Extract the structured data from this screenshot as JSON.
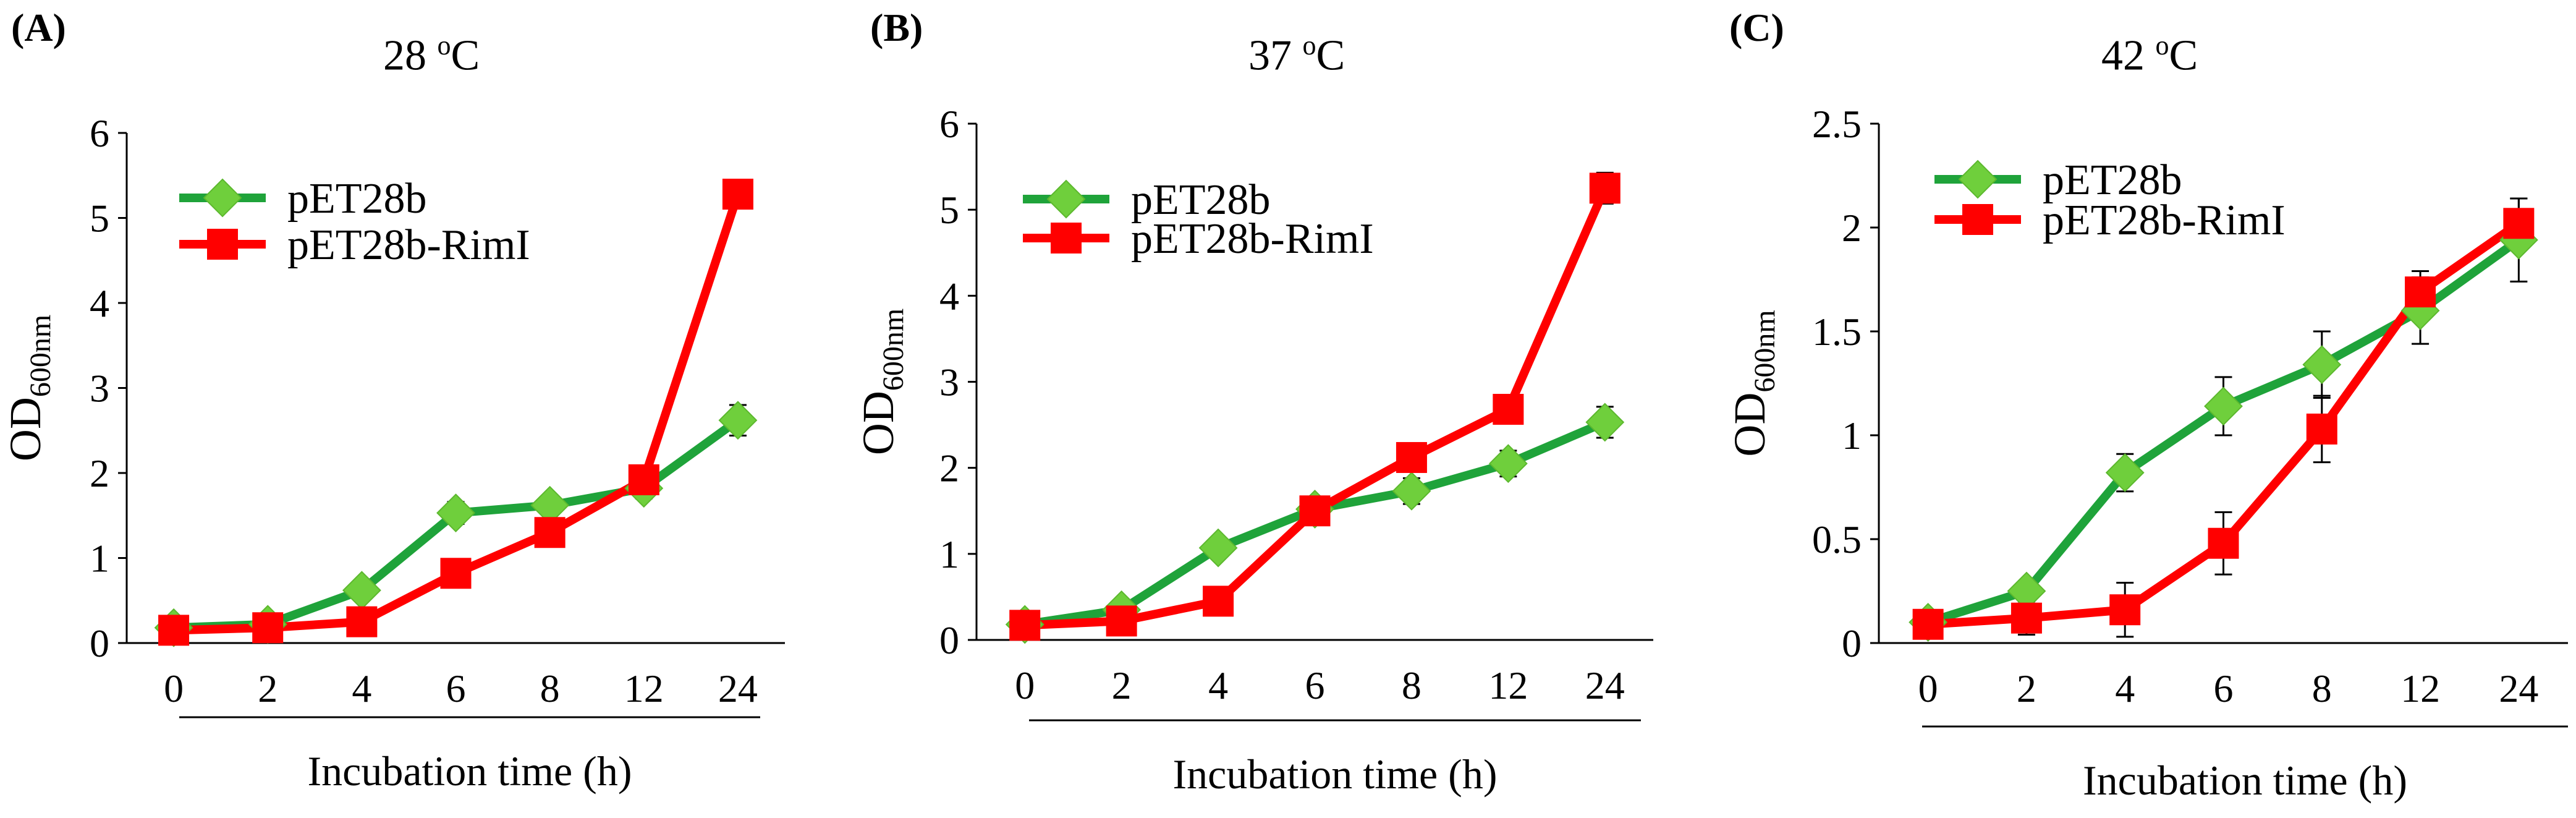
{
  "chart_data": [
    {
      "type": "line",
      "panel_label": "(A)",
      "title_value": "28 ",
      "title_sup": "o",
      "title_unit": "C",
      "categories": [
        "0",
        "2",
        "4",
        "6",
        "8",
        "12",
        "24"
      ],
      "xlabel": "Incubation time (h)",
      "ylabel_main": "OD",
      "ylabel_sub": "600nm",
      "ylim": [
        0,
        6
      ],
      "yticks": [
        "0",
        "1",
        "2",
        "3",
        "4",
        "5",
        "6"
      ],
      "ytick_values": [
        0,
        1,
        2,
        3,
        4,
        5,
        6
      ],
      "legend_position": "top-left",
      "series": [
        {
          "name": "pET28b",
          "color": "#1fa33a",
          "marker_color": "#6fcf3c",
          "marker": "diamond",
          "values": [
            0.18,
            0.22,
            0.62,
            1.53,
            1.62,
            1.82,
            2.62
          ],
          "errors": [
            0.03,
            0.03,
            0.05,
            0.13,
            0.08,
            0.12,
            0.18
          ]
        },
        {
          "name": "pET28b-RimI",
          "color": "#ff0000",
          "marker_color": "#ff0000",
          "marker": "square",
          "values": [
            0.15,
            0.18,
            0.25,
            0.82,
            1.3,
            1.92,
            5.28
          ],
          "errors": [
            0.03,
            0.03,
            0.04,
            0.13,
            0.13,
            0.08,
            0.15
          ]
        }
      ]
    },
    {
      "type": "line",
      "panel_label": "(B)",
      "title_value": "37 ",
      "title_sup": "o",
      "title_unit": "C",
      "categories": [
        "0",
        "2",
        "4",
        "6",
        "8",
        "12",
        "24"
      ],
      "xlabel": "Incubation time (h)",
      "ylabel_main": "OD",
      "ylabel_sub": "600nm",
      "ylim": [
        0,
        6
      ],
      "yticks": [
        "0",
        "1",
        "2",
        "3",
        "4",
        "5",
        "6"
      ],
      "ytick_values": [
        0,
        1,
        2,
        3,
        4,
        5,
        6
      ],
      "legend_position": "top-left",
      "series": [
        {
          "name": "pET28b",
          "color": "#1fa33a",
          "marker_color": "#6fcf3c",
          "marker": "diamond",
          "values": [
            0.18,
            0.35,
            1.07,
            1.52,
            1.73,
            2.05,
            2.53
          ],
          "errors": [
            0.03,
            0.04,
            0.05,
            0.13,
            0.15,
            0.15,
            0.18
          ]
        },
        {
          "name": "pET28b-RimI",
          "color": "#ff0000",
          "marker_color": "#ff0000",
          "marker": "square",
          "values": [
            0.17,
            0.22,
            0.45,
            1.5,
            2.12,
            2.68,
            5.25
          ],
          "errors": [
            0.03,
            0.03,
            0.04,
            0.12,
            0.1,
            0.15,
            0.18
          ]
        }
      ]
    },
    {
      "type": "line",
      "panel_label": "(C)",
      "title_value": "42 ",
      "title_sup": "o",
      "title_unit": "C",
      "categories": [
        "0",
        "2",
        "4",
        "6",
        "8",
        "12",
        "24"
      ],
      "xlabel": "Incubation time (h)",
      "ylabel_main": "OD",
      "ylabel_sub": "600nm",
      "ylim": [
        0,
        2.5
      ],
      "yticks": [
        "0",
        "0.5",
        "1",
        "1.5",
        "2",
        "2.5"
      ],
      "ytick_values": [
        0,
        0.5,
        1,
        1.5,
        2,
        2.5
      ],
      "legend_position": "top-left",
      "series": [
        {
          "name": "pET28b",
          "color": "#1fa33a",
          "marker_color": "#6fcf3c",
          "marker": "diamond",
          "values": [
            0.1,
            0.25,
            0.82,
            1.14,
            1.34,
            1.6,
            1.94
          ],
          "errors": [
            0.02,
            0.04,
            0.09,
            0.14,
            0.16,
            0.16,
            0.2
          ]
        },
        {
          "name": "pET28b-RimI",
          "color": "#ff0000",
          "marker_color": "#ff0000",
          "marker": "square",
          "values": [
            0.09,
            0.12,
            0.16,
            0.48,
            1.03,
            1.69,
            2.02
          ],
          "errors": [
            0.03,
            0.08,
            0.13,
            0.15,
            0.16,
            0.1,
            0.12
          ]
        }
      ]
    }
  ]
}
